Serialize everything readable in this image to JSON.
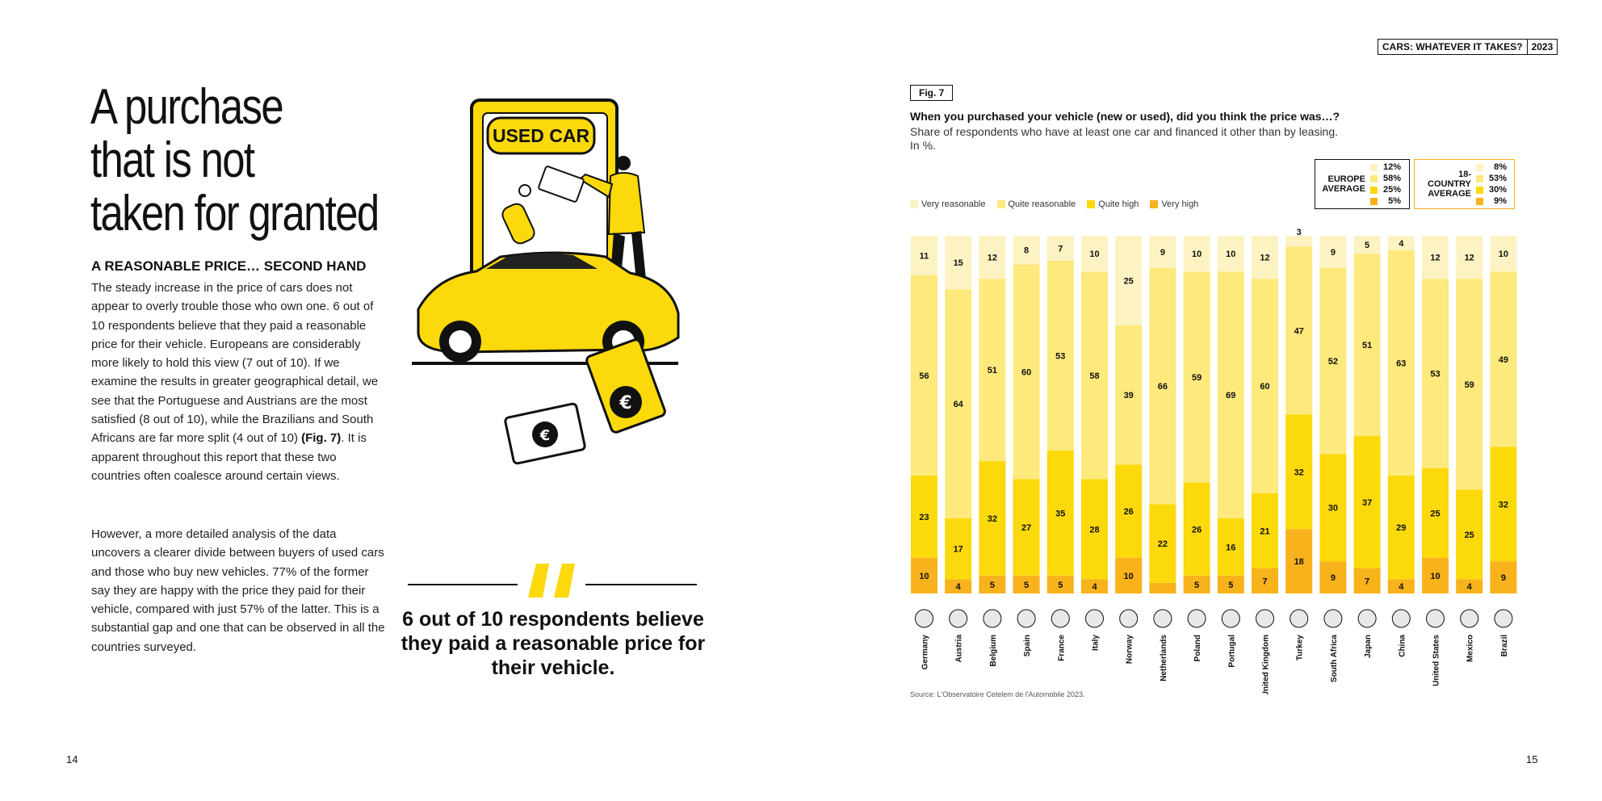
{
  "header": {
    "tag": "CARS: WHATEVER IT TAKES?",
    "year": "2023"
  },
  "page_numbers": {
    "left": "14",
    "right": "15"
  },
  "left": {
    "title_lines": [
      "A purchase",
      "that is not",
      "taken for granted"
    ],
    "subhead": "A REASONABLE PRICE… SECOND HAND",
    "paragraph1_a": "The steady increase in the price of cars does not appear to overly trouble those who own one. 6 out of 10 respondents believe that they paid a reasonable price for their vehicle. Europeans are considerably more likely to hold this view (7 out of 10). If we examine the results in greater geographical detail, we see that the Portuguese and Austrians are the most satisfied (8 out of 10), while the Brazilians and South Africans are far more split (4 out of 10) ",
    "paragraph1_ref": "(Fig. 7)",
    "paragraph1_b": ". It is apparent throughout this report that these two countries often coalesce around certain views.",
    "paragraph2": "However, a more detailed analysis of the data uncovers a clearer divide between buyers of used cars and those who buy new vehicles. 77% of the former say they are happy with the price they paid for their vehicle, compared with just 57% of the latter. This is a substantial gap and one that can be observed in all the countries surveyed."
  },
  "illustration": {
    "sign_text": "USED CAR"
  },
  "quote": {
    "text": "6 out of 10 respondents believe they paid a reasonable price for their vehicle."
  },
  "figure": {
    "label": "Fig. 7",
    "question": "When you purchased your vehicle (new or used), did you think the price was…?",
    "subtitle": "Share of respondents who have at least one car and financed it other than by leasing.",
    "unit": "In %.",
    "source": "Source: L'Observatoire Cetelem de l'Automobile 2023.",
    "colors": {
      "very_reasonable": "#fdf3c2",
      "quite_reasonable": "#fde97c",
      "quite_high": "#fcd90a",
      "very_high": "#f7b21c"
    },
    "averages": {
      "europe": {
        "label_line1": "EUROPE",
        "label_line2": "AVERAGE",
        "values": [
          "12%",
          "58%",
          "25%",
          "5%"
        ]
      },
      "global": {
        "label_line1": "18-COUNTRY",
        "label_line2": "AVERAGE",
        "values": [
          "8%",
          "53%",
          "30%",
          "9%"
        ]
      }
    }
  },
  "chart_data": {
    "type": "bar",
    "stacked": true,
    "categories": [
      "Germany",
      "Austria",
      "Belgium",
      "Spain",
      "France",
      "Italy",
      "Norway",
      "Netherlands",
      "Poland",
      "Portugal",
      "United Kingdom",
      "Turkey",
      "South Africa",
      "Japan",
      "China",
      "United States",
      "Mexico",
      "Brazil"
    ],
    "series": [
      {
        "name": "Very reasonable",
        "values": [
          11,
          15,
          12,
          8,
          7,
          10,
          25,
          9,
          10,
          10,
          12,
          3,
          9,
          5,
          4,
          12,
          12,
          10
        ]
      },
      {
        "name": "Quite reasonable",
        "values": [
          56,
          64,
          51,
          60,
          53,
          58,
          39,
          66,
          59,
          69,
          60,
          47,
          52,
          51,
          63,
          53,
          59,
          49
        ]
      },
      {
        "name": "Quite high",
        "values": [
          23,
          17,
          32,
          27,
          35,
          28,
          26,
          22,
          26,
          16,
          21,
          32,
          30,
          37,
          29,
          25,
          25,
          32
        ]
      },
      {
        "name": "Very high",
        "values": [
          10,
          4,
          5,
          5,
          5,
          4,
          10,
          3,
          5,
          5,
          7,
          18,
          9,
          7,
          4,
          10,
          4,
          9
        ]
      }
    ],
    "ylim": [
      0,
      100
    ],
    "legend": "top-left",
    "grid": false
  }
}
